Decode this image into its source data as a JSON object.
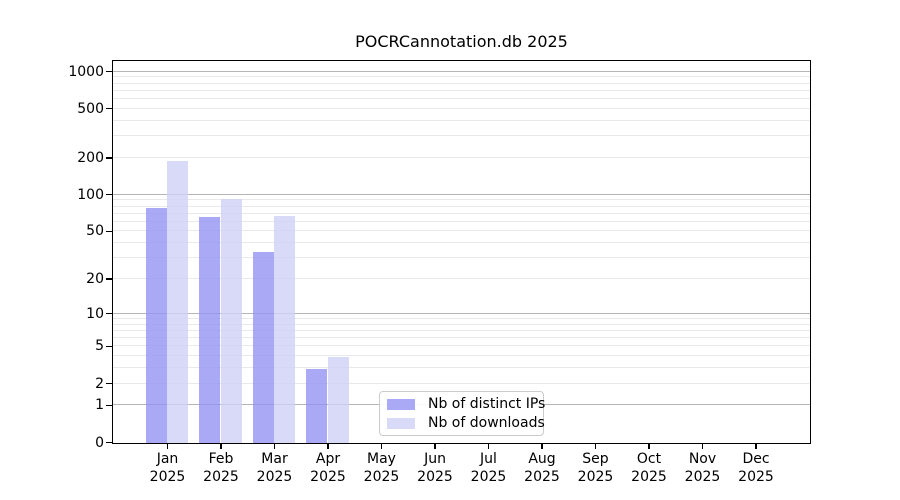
{
  "chart_data": {
    "type": "bar",
    "title": "POCRCannotation.db 2025",
    "categories": [
      "Jan",
      "Feb",
      "Mar",
      "Apr",
      "May",
      "Jun",
      "Jul",
      "Aug",
      "Sep",
      "Oct",
      "Nov",
      "Dec"
    ],
    "year_label": "2025",
    "series": [
      {
        "name": "Nb of distinct IPs",
        "values": [
          78,
          67,
          34,
          3,
          0,
          0,
          0,
          0,
          0,
          0,
          0,
          0
        ],
        "color": "rgba(147,147,243,0.8)",
        "color_hex": "#a9a9f5"
      },
      {
        "name": "Nb of downloads",
        "values": [
          190,
          93,
          68,
          4,
          0,
          0,
          0,
          0,
          0,
          0,
          0,
          0
        ],
        "color": "rgba(207,207,246,0.8)",
        "color_hex": "#d9d9f8"
      }
    ],
    "xlabel": "",
    "ylabel": "",
    "y_axis": {
      "scale": "log1p",
      "tick_labels": [
        "0",
        "1",
        "2",
        "5",
        "10",
        "20",
        "50",
        "100",
        "200",
        "500",
        "1000"
      ],
      "tick_values": [
        0,
        1,
        2,
        5,
        10,
        20,
        50,
        100,
        200,
        500,
        1000
      ],
      "major_gridline_values": [
        1,
        10,
        100,
        1000
      ],
      "minor_gridline_bases": [
        1,
        10,
        100
      ],
      "ylim_top": 1200
    },
    "grid": true,
    "legend": {
      "position": "lower-center-inside",
      "items": [
        "Nb of distinct IPs",
        "Nb of downloads"
      ]
    }
  },
  "colors": {
    "background": "#ffffff",
    "spine": "#000000",
    "major_grid": "#b5b5b5",
    "minor_grid": "#e9e9e9",
    "legend_border": "#cccccc",
    "text": "#000000"
  }
}
